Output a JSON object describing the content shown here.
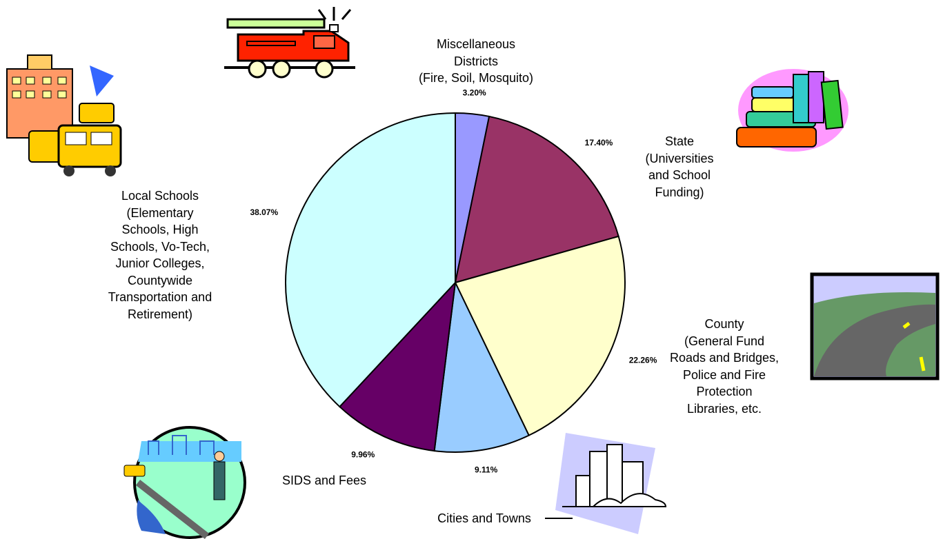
{
  "chart_data": {
    "type": "pie",
    "categories": [
      "Miscellaneous\nDistricts\n(Fire, Soil, Mosquito)",
      "State\n(Universities\nand School\nFunding)",
      "County\n(General Fund\nRoads and Bridges,\nPolice and Fire\nProtection\nLibraries, etc.",
      "Cities and Towns",
      "SIDS and Fees",
      "Local Schools\n(Elementary\nSchools, High\nSchools, Vo-Tech,\nJunior Colleges,\nCountywide\nTransportation and\nRetirement)"
    ],
    "values": [
      3.2,
      17.4,
      22.26,
      9.11,
      9.96,
      38.07
    ],
    "value_labels": [
      "3.20%",
      "17.40%",
      "22.26%",
      "9.11%",
      "9.96%",
      "38.07%"
    ],
    "colors": [
      "#9999ff",
      "#993366",
      "#ffffcc",
      "#99ccff",
      "#660066",
      "#ccffff"
    ]
  }
}
